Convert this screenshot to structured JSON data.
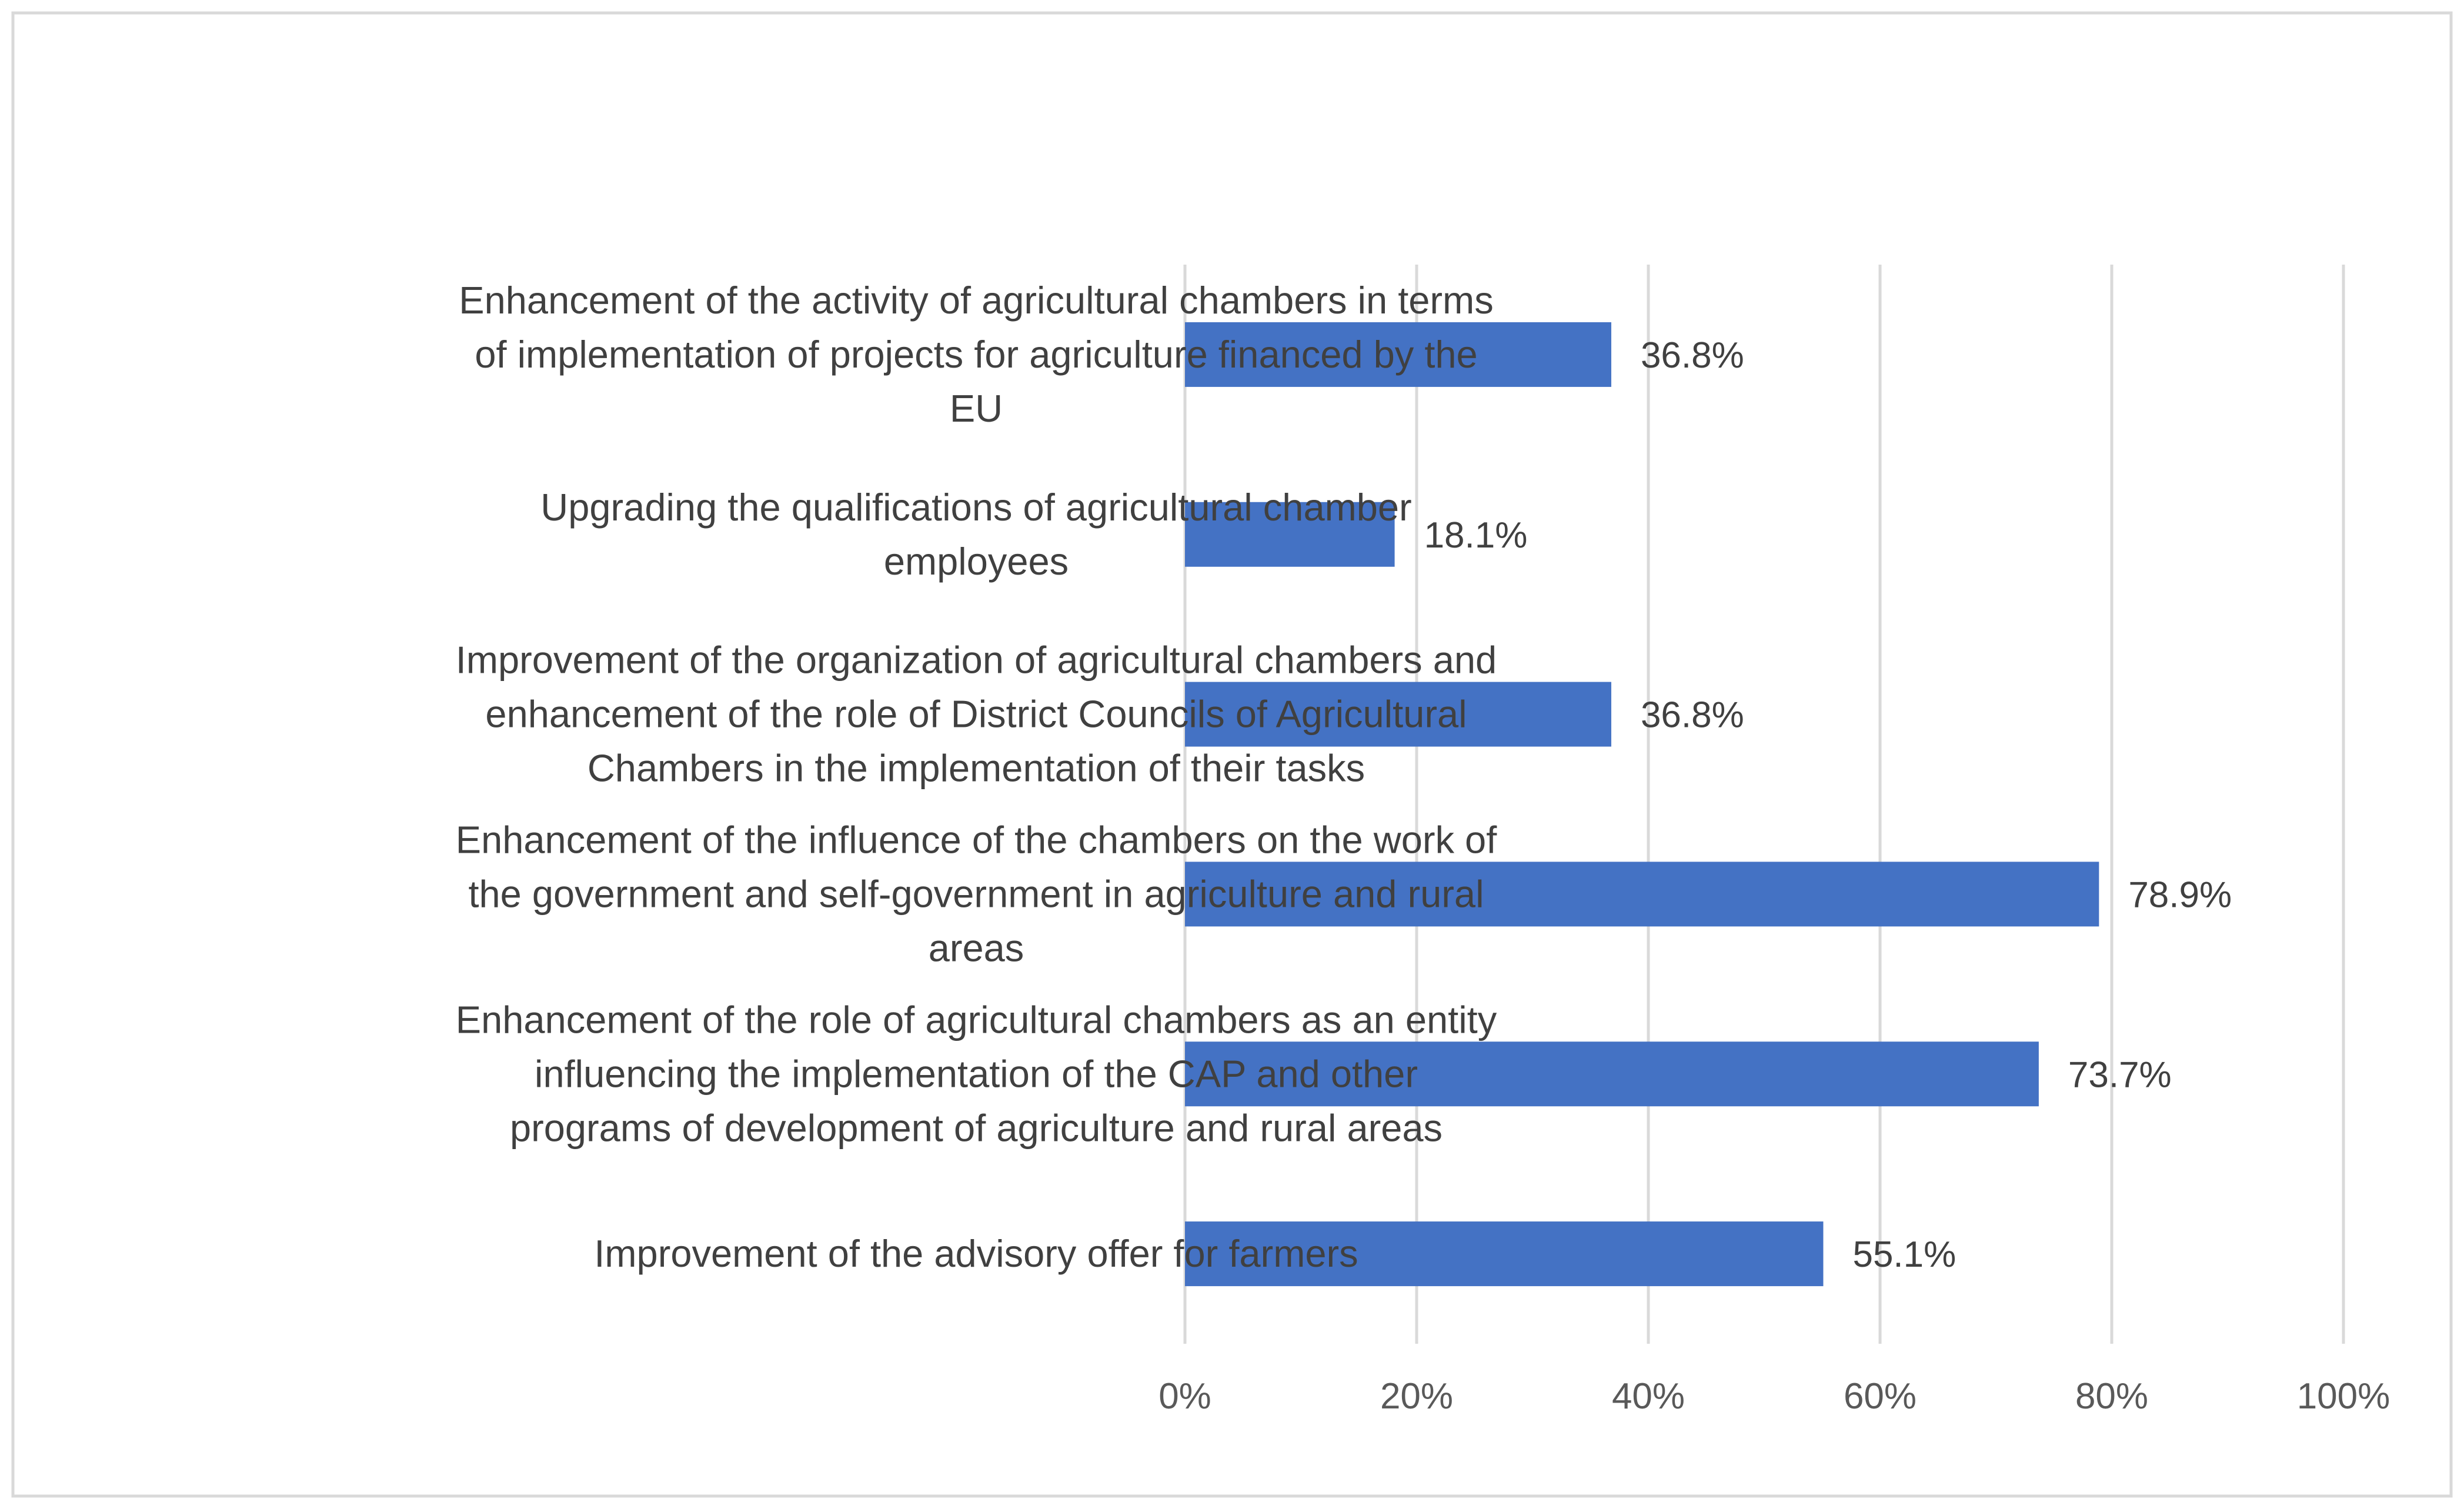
{
  "chart_data": {
    "type": "bar",
    "orientation": "horizontal",
    "categories": [
      [
        "Enhancement of the activity of agricultural chambers in terms",
        "of implementation of projects for agriculture financed by the",
        "EU"
      ],
      [
        "Upgrading the qualifications of agricultural chamber",
        "employees"
      ],
      [
        "Improvement of the organization of agricultural chambers and",
        "enhancement of the role of District Councils of Agricultural",
        "Chambers in the implementation of their tasks"
      ],
      [
        "Enhancement of the influence of the chambers on the work of",
        "the government and self-government in agriculture and rural",
        "areas"
      ],
      [
        "Enhancement of the role of agricultural chambers as an entity",
        "influencing the implementation of the CAP and other",
        "programs of development of agriculture and rural areas"
      ],
      [
        "Improvement of the advisory offer for farmers"
      ]
    ],
    "values": [
      36.8,
      18.1,
      36.8,
      78.9,
      73.7,
      55.1
    ],
    "data_labels": [
      "36.8%",
      "18.1%",
      "36.8%",
      "78.9%",
      "73.7%",
      "55.1%"
    ],
    "x_ticks": [
      "0%",
      "20%",
      "40%",
      "60%",
      "80%",
      "100%"
    ],
    "xlim": [
      0,
      100
    ],
    "grid": true,
    "title": "",
    "xlabel": "",
    "ylabel": "",
    "colors": {
      "bar": "#4472C4",
      "grid": "#D9D9D9",
      "border": "#D9D9D9",
      "label_text": "#404040",
      "tick_text": "#595959"
    }
  }
}
